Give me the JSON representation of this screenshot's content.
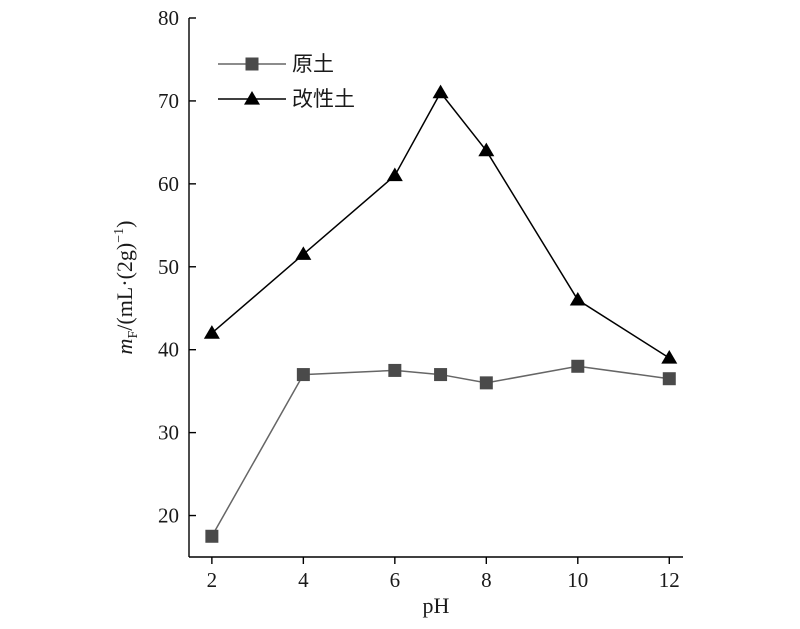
{
  "chart_data": {
    "type": "line",
    "xlabel": "pH",
    "ylabel": {
      "italic": "m",
      "subscript": "F",
      "rest": "/(mL·(2g)",
      "superscript": "−1",
      "close": ")"
    },
    "xlim": [
      1.5,
      12.3
    ],
    "ylim": [
      15,
      80
    ],
    "xticks": [
      2,
      4,
      6,
      8,
      10,
      12
    ],
    "yticks": [
      20,
      30,
      40,
      50,
      60,
      70,
      80
    ],
    "grid": false,
    "legend_position": "top-left",
    "series": [
      {
        "name": "原土",
        "marker": "square",
        "color": "#4a4a4a",
        "line_color": "#666666",
        "x": [
          2,
          4,
          6,
          7,
          8,
          10,
          12
        ],
        "y": [
          17.5,
          37,
          37.5,
          37,
          36,
          38,
          36.5
        ]
      },
      {
        "name": "改性土",
        "marker": "triangle",
        "color": "#000000",
        "line_color": "#000000",
        "x": [
          2,
          4,
          6,
          7,
          8,
          10,
          12
        ],
        "y": [
          42,
          51.5,
          61,
          71,
          64,
          46,
          39
        ]
      }
    ]
  }
}
